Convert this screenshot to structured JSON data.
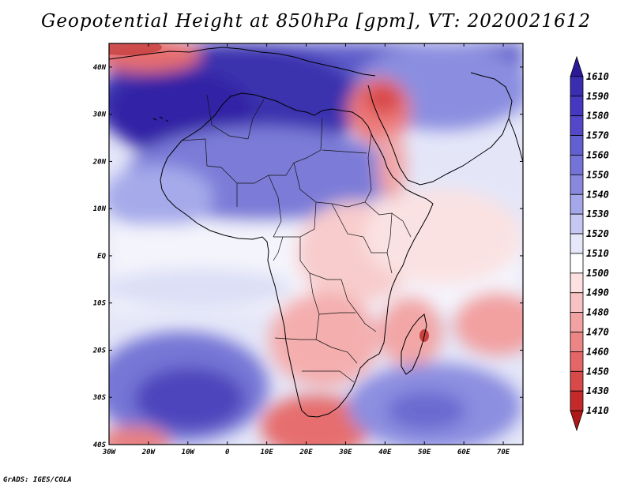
{
  "title": "Geopotential Height at 850hPa [gpm], VT: 2020021612",
  "credit": "GrADS: IGES/COLA",
  "map": {
    "region": "Africa",
    "variable": "Geopotential Height",
    "level": "850hPa",
    "units": "gpm",
    "valid_time": "2020021612",
    "lon_range": [
      -30,
      75
    ],
    "lat_range": [
      -40,
      45
    ],
    "lon_ticks": [
      "30W",
      "20W",
      "10W",
      "0",
      "10E",
      "20E",
      "30E",
      "40E",
      "50E",
      "60E",
      "70E"
    ],
    "lat_ticks": [
      "40N",
      "30N",
      "20N",
      "10N",
      "EQ",
      "10S",
      "20S",
      "30S",
      "40S"
    ]
  },
  "colorbar": {
    "levels": [
      "1610",
      "1590",
      "1580",
      "1570",
      "1560",
      "1550",
      "1540",
      "1530",
      "1520",
      "1510",
      "1500",
      "1490",
      "1480",
      "1470",
      "1460",
      "1450",
      "1430",
      "1410"
    ],
    "colors": [
      "#2a1a9a",
      "#3a2eb0",
      "#4638c0",
      "#5448c8",
      "#6260d0",
      "#7474d8",
      "#8888de",
      "#a4a8e8",
      "#c4c8f2",
      "#e6e8fa",
      "#ffffff",
      "#fde0e0",
      "#f8c2c2",
      "#f2a2a2",
      "#ec8686",
      "#e46666",
      "#d84a4a",
      "#c42a2a",
      "#b01818"
    ]
  }
}
